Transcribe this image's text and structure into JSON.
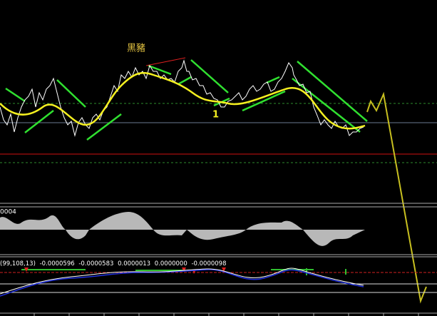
{
  "annotations": {
    "label": "黑豬",
    "wave": "1"
  },
  "oscillator": {
    "scale_label": "0004"
  },
  "indicator": {
    "params": "(99,108,13)",
    "readings": [
      "-0.0000596",
      "-0.0000583",
      "0.0000013",
      "0.0000000",
      "-0.0000098"
    ]
  }
}
